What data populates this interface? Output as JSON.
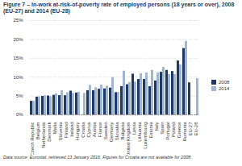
{
  "chart_data": {
    "type": "bar",
    "title": "Figure 7 – In-work at-risk-of-poverty rate of employed persons (18 years or over), 2008 (EU-27) and 2014 (EU-28)",
    "caption": "Data source: Eurostat, retrieved 13 January 2016. Figures for Croatia are not available for 2008.",
    "categories": [
      "Czech Republic",
      "Belgium",
      "Netherlands",
      "Denmark",
      "Malta",
      "Slovenia",
      "Finland",
      "Ireland",
      "Hungary",
      "Croatia",
      "Cyprus",
      "Austria",
      "France",
      "Sweden",
      "Germany",
      "Slovakia",
      "Bulgaria",
      "United Kingdom",
      "Latvia",
      "Lithuania",
      "Luxembourg",
      "Estonia",
      "Italy",
      "Spain",
      "Portugal",
      "Poland",
      "Greece",
      "Romania",
      "EU-27",
      "EU-28"
    ],
    "series": [
      {
        "name": "2008",
        "color": "#1f3864",
        "values": [
          3.6,
          4.7,
          4.9,
          5.0,
          5.2,
          5.1,
          5.1,
          6.3,
          5.8,
          null,
          6.4,
          6.4,
          6.8,
          6.9,
          7.1,
          5.9,
          7.5,
          8.0,
          10.8,
          9.4,
          9.4,
          7.5,
          9.0,
          11.3,
          11.8,
          11.5,
          14.3,
          17.6,
          8.5,
          null
        ]
      },
      {
        "name": "2014",
        "color": "#9fb6d6",
        "values": [
          3.6,
          4.8,
          5.1,
          4.8,
          5.6,
          6.4,
          5.9,
          5.7,
          6.0,
          5.7,
          7.8,
          7.2,
          7.9,
          7.6,
          9.9,
          6.0,
          11.6,
          8.6,
          8.7,
          10.9,
          11.1,
          11.8,
          11.1,
          12.6,
          10.7,
          10.7,
          13.3,
          19.5,
          null,
          9.6
        ]
      }
    ],
    "ylim": [
      0,
      25
    ],
    "yticks": [
      {
        "value": 0,
        "label": "0%"
      },
      {
        "value": 5,
        "label": "5%"
      },
      {
        "value": 10,
        "label": "10%"
      },
      {
        "value": 15,
        "label": "15%"
      },
      {
        "value": 20,
        "label": "20%"
      },
      {
        "value": 25,
        "label": "25%"
      }
    ],
    "grid": true,
    "legend": "right"
  }
}
